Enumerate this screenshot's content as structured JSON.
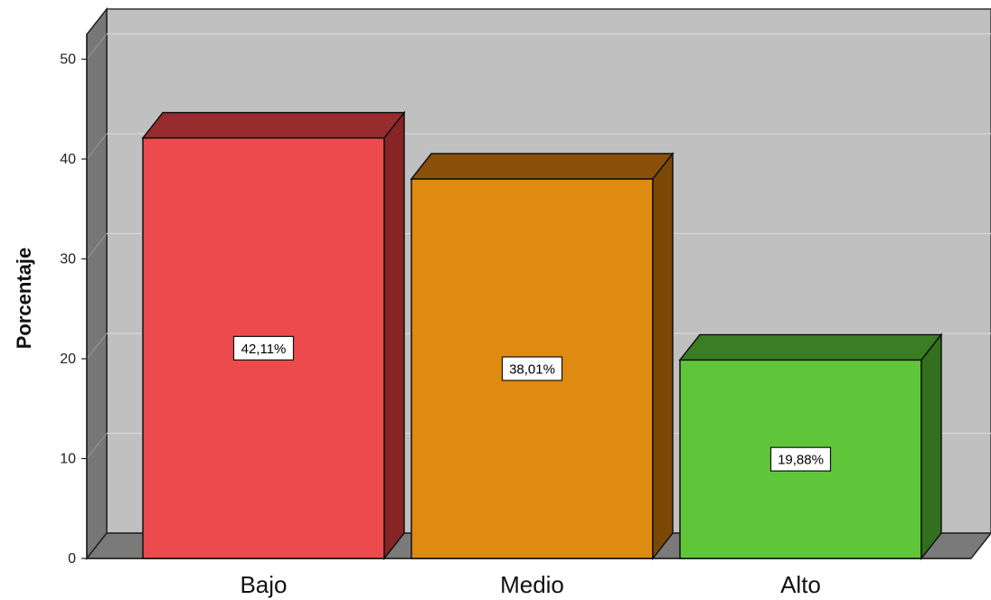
{
  "chart_data": {
    "type": "bar",
    "ylabel": "Porcentaje",
    "categories": [
      "Bajo",
      "Medio",
      "Alto"
    ],
    "values": [
      42.11,
      38.01,
      19.88
    ],
    "data_labels": [
      "42,11%",
      "38,01%",
      "19,88%"
    ],
    "bar_colors": [
      "#ec4a4c",
      "#df8a11",
      "#5fc63a"
    ],
    "bar_top_colors": [
      "#962c2e",
      "#8a5008",
      "#3a7e24"
    ],
    "bar_side_colors": [
      "#862426",
      "#7c4806",
      "#326f1f"
    ],
    "ylim": [
      0,
      55
    ],
    "yticks": [
      0,
      10,
      20,
      30,
      40,
      50
    ],
    "ytick_labels": [
      "0",
      "10",
      "20",
      "30",
      "40",
      "50"
    ],
    "grid": true,
    "style": "3d",
    "wall_color": "#c0c0c0",
    "side_wall_color": "#777777"
  }
}
